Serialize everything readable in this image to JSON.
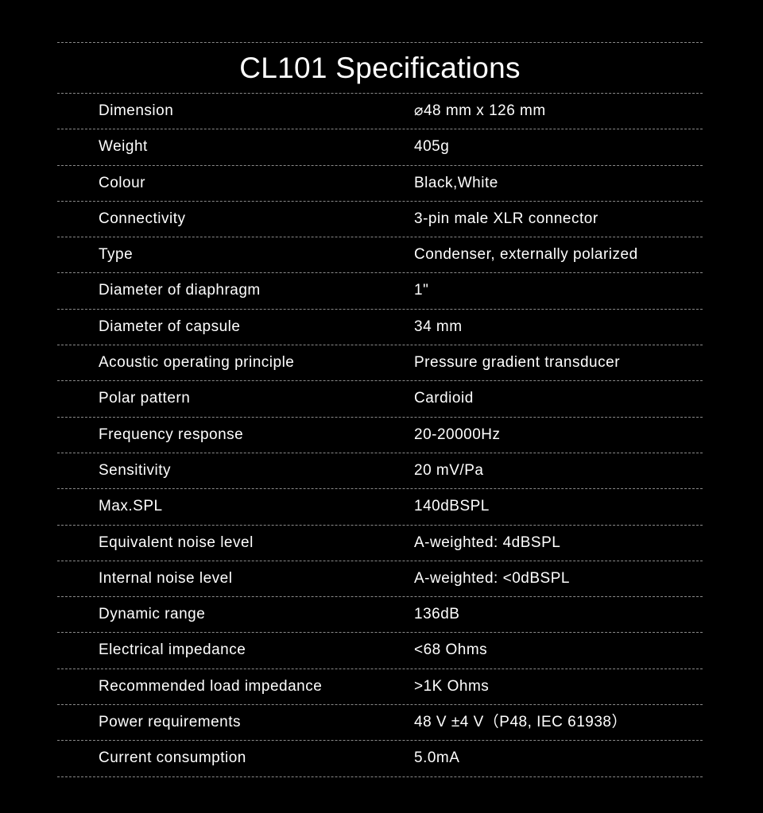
{
  "title": "CL101 Specifications",
  "specs": [
    {
      "label": "Dimension",
      "value": "⌀48 mm x 126 mm"
    },
    {
      "label": "Weight",
      "value": "405g"
    },
    {
      "label": "Colour",
      "value": "Black,White"
    },
    {
      "label": "Connectivity",
      "value": "3-pin male XLR connector"
    },
    {
      "label": "Type",
      "value": "Condenser, externally polarized"
    },
    {
      "label": "Diameter of diaphragm",
      "value": "1\""
    },
    {
      "label": "Diameter of capsule",
      "value": "34 mm"
    },
    {
      "label": "Acoustic operating principle",
      "value": "Pressure gradient transducer"
    },
    {
      "label": "Polar pattern",
      "value": "Cardioid"
    },
    {
      "label": "Frequency response",
      "value": "20-20000Hz"
    },
    {
      "label": "Sensitivity",
      "value": "20 mV/Pa"
    },
    {
      "label": "Max.SPL",
      "value": "140dBSPL"
    },
    {
      "label": "Equivalent noise level",
      "value": "A-weighted: 4dBSPL"
    },
    {
      "label": "Internal noise level",
      "value": "A-weighted: <0dBSPL"
    },
    {
      "label": "Dynamic range",
      "value": "136dB"
    },
    {
      "label": "Electrical impedance",
      "value": "<68 Ohms"
    },
    {
      "label": "Recommended load impedance",
      "value": ">1K Ohms"
    },
    {
      "label": "Power requirements",
      "value": "48 V ±4 V（P48, IEC 61938）"
    },
    {
      "label": "Current consumption",
      "value": "5.0mA"
    }
  ]
}
